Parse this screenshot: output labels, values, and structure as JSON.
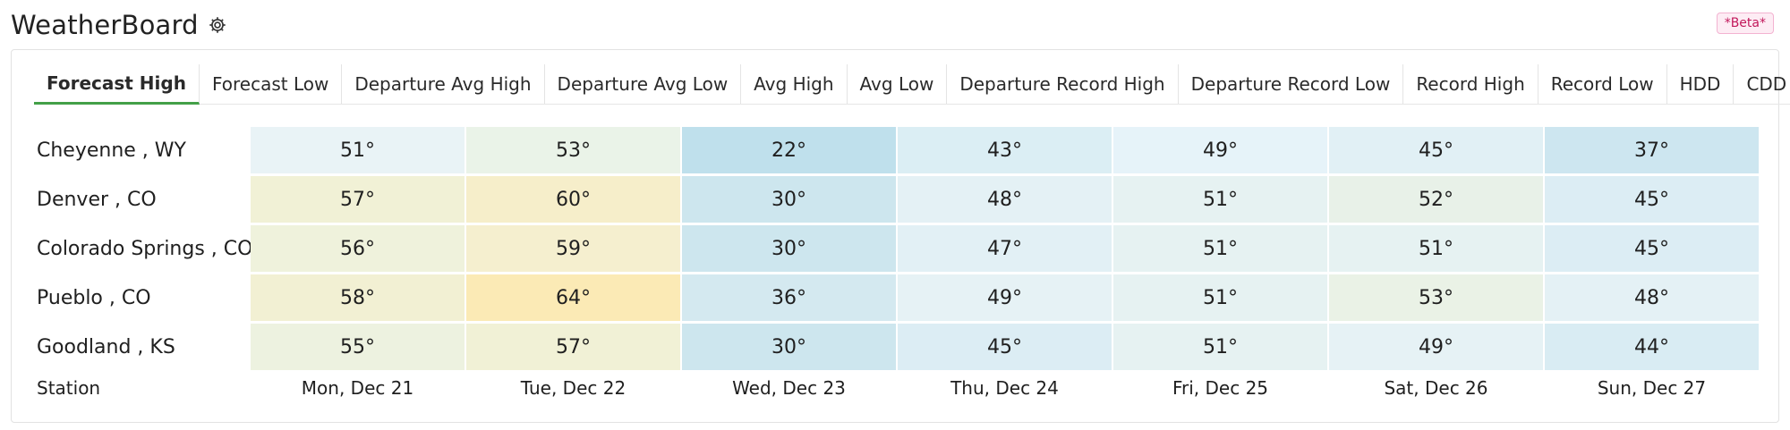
{
  "header": {
    "title": "WeatherBoard",
    "beta_label": "*Beta*"
  },
  "tabs": [
    {
      "label": "Forecast High"
    },
    {
      "label": "Forecast Low"
    },
    {
      "label": "Departure Avg High"
    },
    {
      "label": "Departure Avg Low"
    },
    {
      "label": "Avg High"
    },
    {
      "label": "Avg Low"
    },
    {
      "label": "Departure Record High"
    },
    {
      "label": "Departure Record Low"
    },
    {
      "label": "Record High"
    },
    {
      "label": "Record Low"
    },
    {
      "label": "HDD"
    },
    {
      "label": "CDD"
    }
  ],
  "active_tab": "Forecast High",
  "rows": [
    {
      "station": "Cheyenne , WY",
      "values": [
        "51°",
        "53°",
        "22°",
        "43°",
        "49°",
        "45°",
        "37°"
      ],
      "colors": [
        "#e9f3f6",
        "#eaf3e8",
        "#bfe0ec",
        "#dbeef4",
        "#e6f3f9",
        "#e1f0f5",
        "#cde6f0"
      ]
    },
    {
      "station": "Denver , CO",
      "values": [
        "57°",
        "60°",
        "30°",
        "48°",
        "51°",
        "52°",
        "45°"
      ],
      "colors": [
        "#f1f1d6",
        "#f6eeca",
        "#cde6ee",
        "#e4f1f5",
        "#e6f2f2",
        "#e8f1e8",
        "#dcedf4"
      ]
    },
    {
      "station": "Colorado Springs , CO",
      "values": [
        "56°",
        "59°",
        "30°",
        "47°",
        "51°",
        "51°",
        "45°"
      ],
      "colors": [
        "#eff2dc",
        "#f5efcf",
        "#cde6ee",
        "#e2f0f5",
        "#e6f2f2",
        "#e6f2f2",
        "#dcedf4"
      ]
    },
    {
      "station": "Pueblo , CO",
      "values": [
        "58°",
        "64°",
        "36°",
        "49°",
        "51°",
        "53°",
        "48°"
      ],
      "colors": [
        "#f2f0d3",
        "#fbeab5",
        "#d4e9f0",
        "#e6f2f5",
        "#e6f2f2",
        "#eaf2e6",
        "#e4f1f5"
      ]
    },
    {
      "station": "Goodland , KS",
      "values": [
        "55°",
        "57°",
        "30°",
        "45°",
        "51°",
        "49°",
        "44°"
      ],
      "colors": [
        "#edf2e0",
        "#f1f1d6",
        "#cde6ee",
        "#dcedf4",
        "#e6f2f2",
        "#e6f2f5",
        "#d9ecf3"
      ]
    }
  ],
  "footer": {
    "station_label": "Station",
    "days": [
      "Mon, Dec 21",
      "Tue, Dec 22",
      "Wed, Dec 23",
      "Thu, Dec 24",
      "Fri, Dec 25",
      "Sat, Dec 26",
      "Sun, Dec 27"
    ]
  }
}
